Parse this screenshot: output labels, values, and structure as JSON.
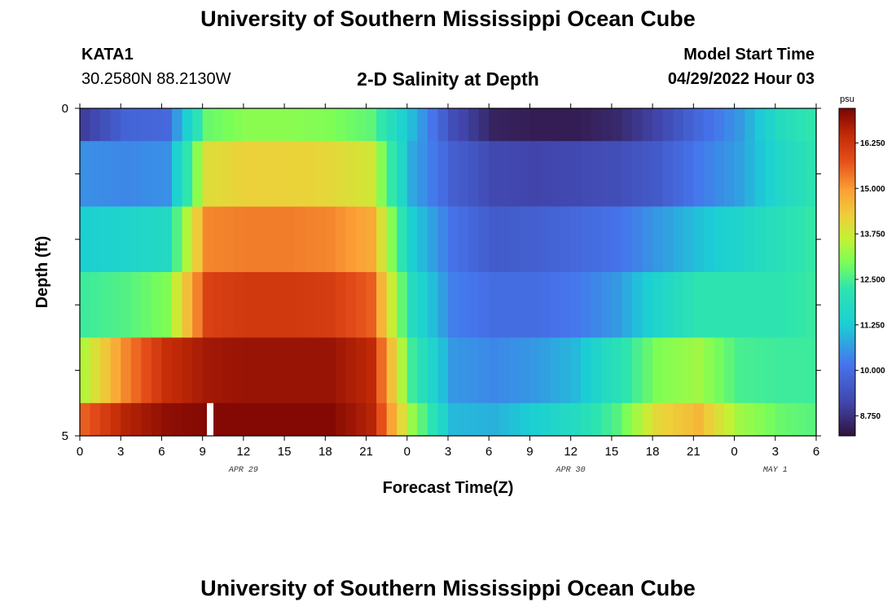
{
  "header": {
    "title": "University of Southern Mississippi Ocean Cube",
    "station": "KATA1",
    "coords": "30.2580N  88.2130W",
    "subtitle": "2-D Salinity at Depth",
    "model_start_label": "Model Start Time",
    "model_start_value": "04/29/2022 Hour 03"
  },
  "footer": {
    "title": "University of Southern Mississippi Ocean Cube"
  },
  "chart_data": {
    "type": "heatmap",
    "title": "2-D Salinity at Depth",
    "xlabel": "Forecast Time(Z)",
    "ylabel": "Depth (ft)",
    "x_tick_labels": [
      "0",
      "3",
      "6",
      "9",
      "12",
      "15",
      "18",
      "21",
      "0",
      "3",
      "6",
      "9",
      "12",
      "15",
      "18",
      "21",
      "0",
      "3",
      "6"
    ],
    "date_labels": [
      {
        "label": "APR 29",
        "at_tick": 4
      },
      {
        "label": "APR 30",
        "at_tick": 12
      },
      {
        "label": "MAY 1",
        "at_tick": 17
      }
    ],
    "y_tick_labels": [
      "0",
      "5"
    ],
    "ylim": [
      0,
      5
    ],
    "hours_range": [
      0,
      54
    ],
    "colorbar": {
      "unit": "psu",
      "range": [
        8.2,
        17.2
      ],
      "ticks": [
        "16.250",
        "15.000",
        "13.750",
        "12.500",
        "11.250",
        "10.000",
        "8.750"
      ],
      "tick_values": [
        16.25,
        15.0,
        13.75,
        12.5,
        11.25,
        10.0,
        8.75
      ]
    },
    "row_depths": [
      0,
      1,
      2,
      3,
      4,
      5
    ],
    "column_hours": [
      0,
      3,
      6,
      9,
      12,
      15,
      18,
      21,
      24,
      27,
      30,
      33,
      36,
      39,
      42,
      45,
      48,
      51,
      54
    ],
    "salinity": [
      [
        9.0,
        9.8,
        9.9,
        12.8,
        13.1,
        13.1,
        13.0,
        12.7,
        11.0,
        9.3,
        8.5,
        8.4,
        8.4,
        8.6,
        9.1,
        9.9,
        10.6,
        11.8,
        12.4
      ],
      [
        10.5,
        10.4,
        10.5,
        14.0,
        14.2,
        14.2,
        14.1,
        13.8,
        10.8,
        9.7,
        9.2,
        9.1,
        9.2,
        9.3,
        9.6,
        10.2,
        10.7,
        11.6,
        12.3
      ],
      [
        11.3,
        11.5,
        11.7,
        15.2,
        15.3,
        15.3,
        15.2,
        14.8,
        11.3,
        10.1,
        9.6,
        9.7,
        9.9,
        10.1,
        10.6,
        11.1,
        11.5,
        12.0,
        12.4
      ],
      [
        12.4,
        12.6,
        13.0,
        16.0,
        16.2,
        16.2,
        16.1,
        15.6,
        11.8,
        10.3,
        10.0,
        10.0,
        10.2,
        10.6,
        11.5,
        12.2,
        12.2,
        12.2,
        12.4
      ],
      [
        13.5,
        15.2,
        16.4,
        16.8,
        16.9,
        16.9,
        16.9,
        16.5,
        12.4,
        10.6,
        10.4,
        10.6,
        11.0,
        12.0,
        13.0,
        13.3,
        12.5,
        12.4,
        12.4
      ],
      [
        15.6,
        16.6,
        17.0,
        17.1,
        17.1,
        17.1,
        17.1,
        16.6,
        13.2,
        11.0,
        10.9,
        11.3,
        11.8,
        12.6,
        14.1,
        14.6,
        13.3,
        12.8,
        12.6
      ]
    ],
    "marker": {
      "hour": 9.5,
      "depth_from": 4.5,
      "depth_to": 5.0
    }
  }
}
